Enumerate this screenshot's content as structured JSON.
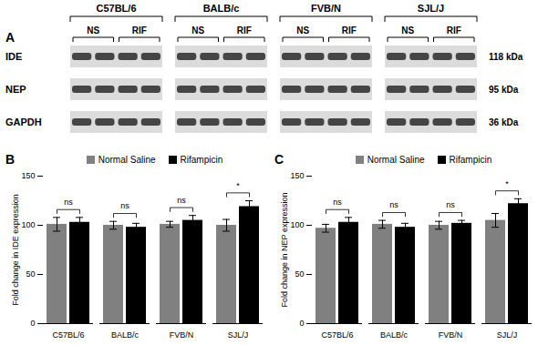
{
  "panel_a": {
    "label": "A",
    "groups": [
      "C57BL/6",
      "BALB/c",
      "FVB/N",
      "SJL/J"
    ],
    "conditions": [
      "NS",
      "RIF"
    ],
    "rows": [
      {
        "protein": "IDE",
        "size": "118 kDa"
      },
      {
        "protein": "NEP",
        "size": "95 kDa"
      },
      {
        "protein": "GAPDH",
        "size": "36 kDa"
      }
    ]
  },
  "chart_data": [
    {
      "type": "bar",
      "title": "B",
      "y_label": "Fold change in IDE expression",
      "categories": [
        "C57BL/6",
        "BALB/c",
        "FVB/N",
        "SJL/J"
      ],
      "series": [
        {
          "name": "Normal Saline",
          "color": "#808080",
          "values": [
            101,
            100,
            101,
            100
          ],
          "errors": [
            7,
            4,
            3,
            6
          ]
        },
        {
          "name": "Rifampicin",
          "color": "#000000",
          "values": [
            103,
            98,
            105,
            119
          ],
          "errors": [
            5,
            4,
            5,
            6
          ]
        }
      ],
      "annotations": [
        "ns",
        "ns",
        "ns",
        "*"
      ],
      "ylim": [
        0,
        150
      ],
      "yticks": [
        0,
        50,
        100,
        150
      ],
      "legend": "top"
    },
    {
      "type": "bar",
      "title": "C",
      "y_label": "Fold change in NEP expression",
      "categories": [
        "C57BL/6",
        "BALB/c",
        "FVB/N",
        "SJL/J"
      ],
      "series": [
        {
          "name": "Normal Saline",
          "color": "#808080",
          "values": [
            97,
            101,
            100,
            105
          ],
          "errors": [
            4,
            4,
            4,
            7
          ]
        },
        {
          "name": "Rifampicin",
          "color": "#000000",
          "values": [
            103,
            98,
            102,
            122
          ],
          "errors": [
            5,
            4,
            3,
            5
          ]
        }
      ],
      "annotations": [
        "ns",
        "ns",
        "ns",
        "*"
      ],
      "ylim": [
        0,
        150
      ],
      "yticks": [
        0,
        50,
        100,
        150
      ],
      "legend": "top"
    }
  ]
}
